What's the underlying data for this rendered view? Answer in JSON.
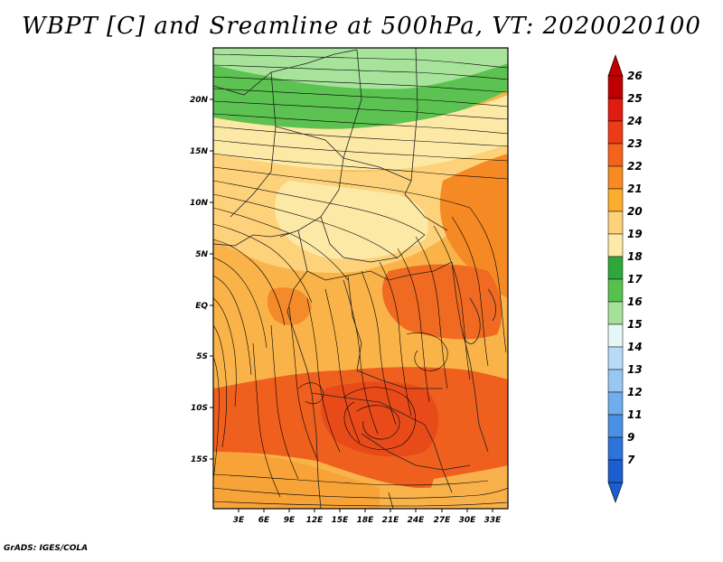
{
  "title": "WBPT [C] and Sreamline at 500hPa, VT: 2020020100",
  "credit": "GrADS: IGES/COLA",
  "lat_labels": [
    "20N",
    "15N",
    "10N",
    "5N",
    "EQ",
    "5S",
    "10S",
    "15S"
  ],
  "lon_labels": [
    "3E",
    "6E",
    "9E",
    "12E",
    "15E",
    "18E",
    "21E",
    "24E",
    "27E",
    "30E",
    "33E"
  ],
  "colorbar": {
    "labels": [
      "26",
      "25",
      "24",
      "23",
      "22",
      "21",
      "20",
      "19",
      "18",
      "17",
      "16",
      "15",
      "14",
      "13",
      "12",
      "11",
      "9",
      "7"
    ],
    "colors": [
      "#c00000",
      "#e01b0f",
      "#ee3b17",
      "#f4631e",
      "#f88a22",
      "#fbae2c",
      "#fed27a",
      "#fdeaa8",
      "#2ea83a",
      "#58c14e",
      "#a5e19a",
      "#e6f8f5",
      "#b7dcf7",
      "#98c7f3",
      "#6fadec",
      "#4a90e3",
      "#2e73d8",
      "#1a5ed0"
    ]
  }
}
